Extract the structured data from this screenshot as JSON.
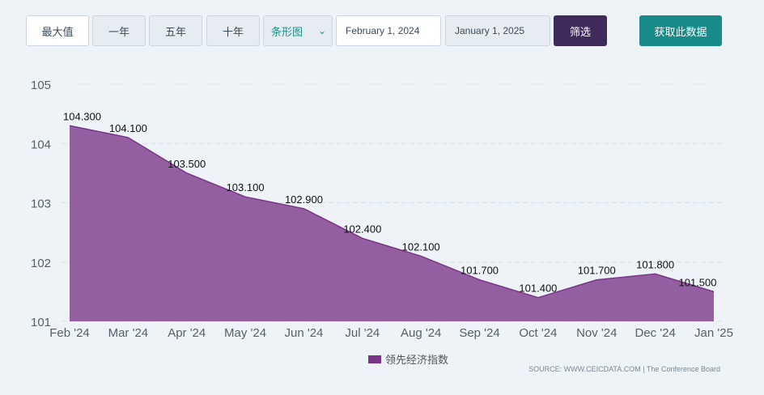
{
  "toolbar": {
    "max_label": "最大值",
    "one_year_label": "一年",
    "five_year_label": "五年",
    "ten_year_label": "十年",
    "chart_type_label": "条形图",
    "start_date": "February 1, 2024",
    "end_date": "January 1, 2025",
    "filter_label": "筛选",
    "get_data_label": "获取此数据"
  },
  "icons": {
    "select_chevron": "chevron-down-icon"
  },
  "colors": {
    "series": "#7a3588",
    "accent": "#178a89",
    "filter_bg": "#3f2a5c"
  },
  "legend": {
    "label": "领先经济指数"
  },
  "source": "SOURCE: WWW.CEICDATA.COM | The Conference Board",
  "chart_data": {
    "type": "area",
    "x": [
      "Feb '24",
      "Mar '24",
      "Apr '24",
      "May '24",
      "Jun '24",
      "Jul '24",
      "Aug '24",
      "Sep '24",
      "Oct '24",
      "Nov '24",
      "Dec '24",
      "Jan '25"
    ],
    "series": [
      {
        "name": "领先经济指数",
        "values": [
          104.3,
          104.1,
          103.5,
          103.1,
          102.9,
          102.4,
          102.1,
          101.7,
          101.4,
          101.7,
          101.8,
          101.5
        ],
        "labels": [
          "104.300",
          "104.100",
          "103.500",
          "103.100",
          "102.900",
          "102.400",
          "102.100",
          "101.700",
          "101.400",
          "101.700",
          "101.800",
          "101.500"
        ]
      }
    ],
    "ylim": [
      101,
      105
    ],
    "yticks": [
      101,
      102,
      103,
      104,
      105
    ],
    "grid": true,
    "legend_position": "bottom-center",
    "title": "",
    "xlabel": "",
    "ylabel": ""
  }
}
